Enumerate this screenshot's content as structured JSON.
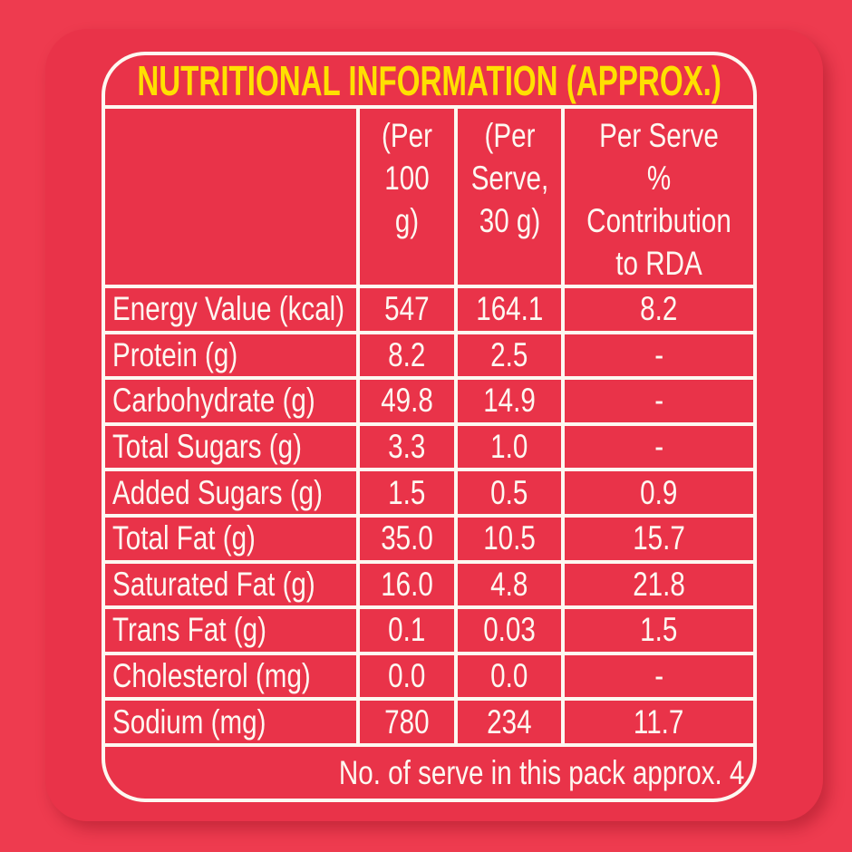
{
  "title": "NUTRITIONAL INFORMATION (APPROX.)",
  "header": {
    "blank": "",
    "per_100g": "(Per\n100 g)",
    "per_serve": "(Per\nServe,\n30 g)",
    "rda": "Per Serve\n% Contribution\nto RDA"
  },
  "rows": [
    {
      "label": "Energy Value (kcal)",
      "per_100g": "547",
      "per_serve": "164.1",
      "rda": "8.2"
    },
    {
      "label": "Protein (g)",
      "per_100g": "8.2",
      "per_serve": "2.5",
      "rda": "-"
    },
    {
      "label": "Carbohydrate (g)",
      "per_100g": "49.8",
      "per_serve": "14.9",
      "rda": "-"
    },
    {
      "label": "Total Sugars (g)",
      "per_100g": "3.3",
      "per_serve": "1.0",
      "rda": "-"
    },
    {
      "label": "Added Sugars (g)",
      "per_100g": "1.5",
      "per_serve": "0.5",
      "rda": "0.9"
    },
    {
      "label": "Total Fat (g)",
      "per_100g": "35.0",
      "per_serve": "10.5",
      "rda": "15.7"
    },
    {
      "label": "Saturated Fat (g)",
      "per_100g": "16.0",
      "per_serve": "4.8",
      "rda": "21.8"
    },
    {
      "label": "Trans Fat (g)",
      "per_100g": "0.1",
      "per_serve": "0.03",
      "rda": "1.5"
    },
    {
      "label": "Cholesterol (mg)",
      "per_100g": "0.0",
      "per_serve": "0.0",
      "rda": "-"
    },
    {
      "label": "Sodium (mg)",
      "per_100g": "780",
      "per_serve": "234",
      "rda": "11.7"
    }
  ],
  "footer": "No. of serve in this pack approx. 4",
  "colors": {
    "background": "#ee3b4f",
    "panel": "#e93349",
    "line": "#fdf8f1",
    "text": "#fdf8f1",
    "title": "#ffe000"
  }
}
